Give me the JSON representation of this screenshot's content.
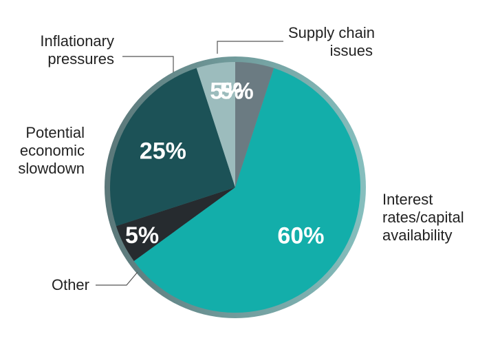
{
  "chart_data": {
    "type": "pie",
    "title": "",
    "slices": [
      {
        "label": "Supply chain issues",
        "label_lines": [
          "Supply chain",
          "issues"
        ],
        "value": 5,
        "display": "5%",
        "color": "#6b7b82"
      },
      {
        "label": "Interest rates/capital availability",
        "label_lines": [
          "Interest",
          "rates/capital",
          "availability"
        ],
        "value": 60,
        "display": "60%",
        "color": "#13aeaa"
      },
      {
        "label": "Other",
        "label_lines": [
          "Other"
        ],
        "value": 5,
        "display": "5%",
        "color": "#262b2f"
      },
      {
        "label": "Potential economic slowdown",
        "label_lines": [
          "Potential",
          "economic",
          "slowdown"
        ],
        "value": 25,
        "display": "25%",
        "color": "#1c5257"
      },
      {
        "label": "Inflationary pressures",
        "label_lines": [
          "Inflationary",
          "pressures"
        ],
        "value": 5,
        "display": "5%",
        "color": "#9cbcbd"
      }
    ],
    "start": "12 o'clock",
    "direction": "clockwise",
    "legend": "none",
    "ring_colors": {
      "left": "#5b7779",
      "right": "#86bfbe"
    }
  }
}
